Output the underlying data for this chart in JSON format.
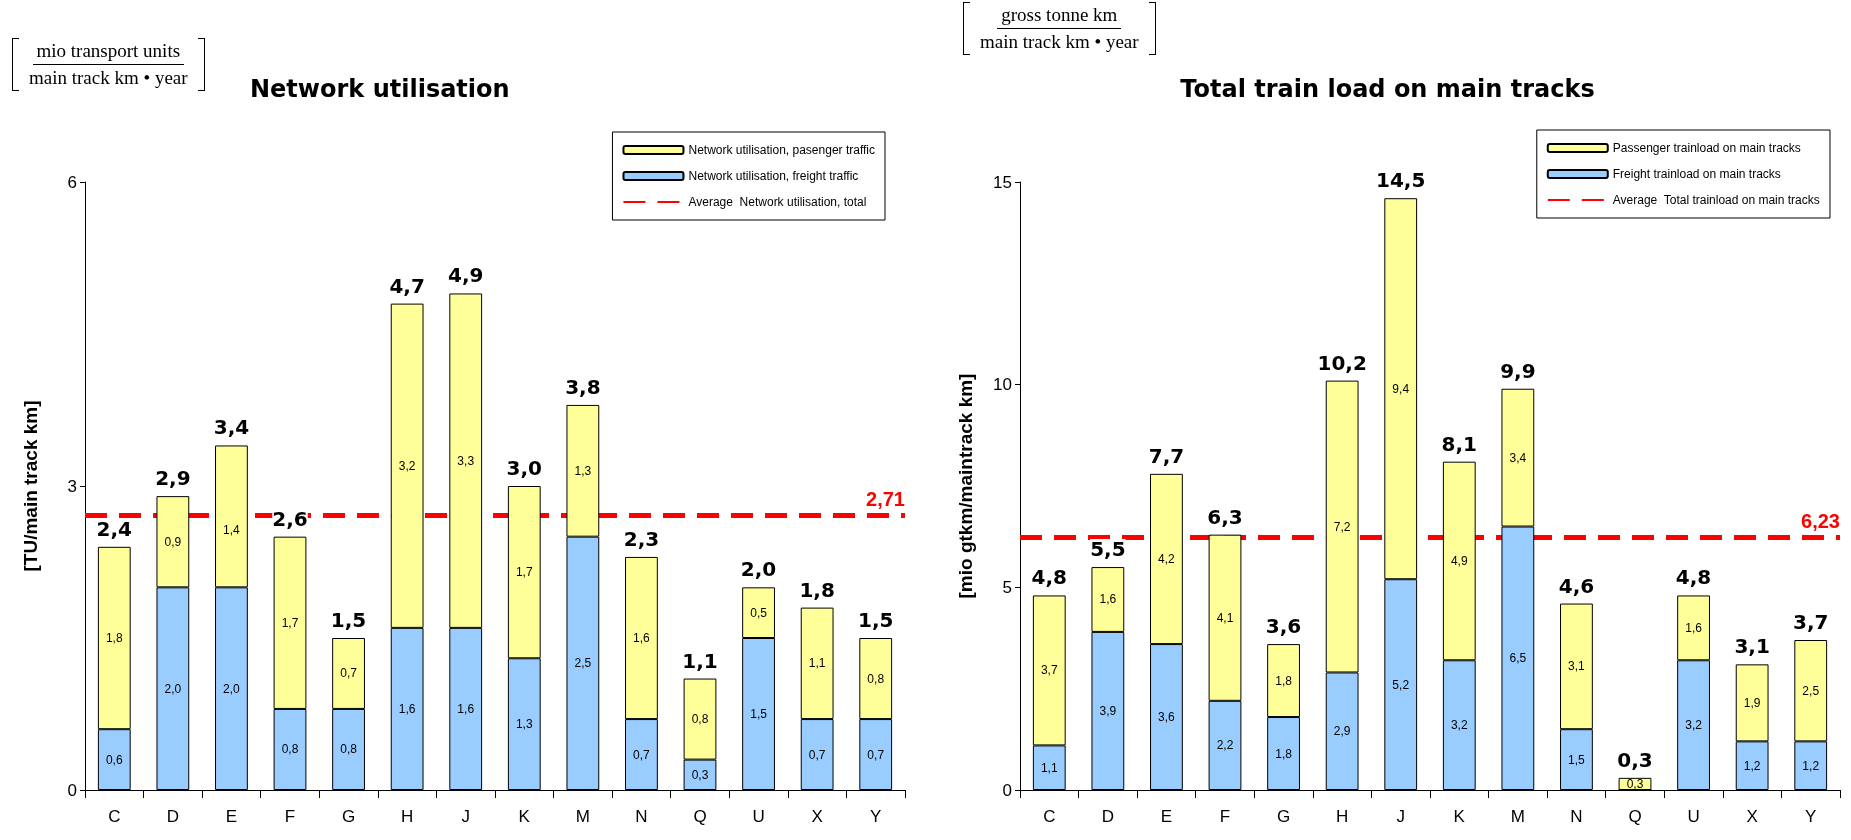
{
  "chart_data": [
    {
      "type": "bar",
      "title": "Network utilisation",
      "ylabel": "[TU/main track km]",
      "annotations": [
        "mio transport units",
        "main track km • year",
        "Average  Network utilisation, total"
      ],
      "categories": [
        "C",
        "D",
        "E",
        "F",
        "G",
        "H",
        "J",
        "K",
        "M",
        "N",
        "Q",
        "U",
        "X",
        "Y"
      ],
      "stacked": true,
      "series": [
        {
          "name": "Network utilisation, freight traffic",
          "color": "#99ccff",
          "values": [
            0.6,
            2.0,
            2.0,
            0.8,
            0.8,
            1.6,
            1.6,
            1.3,
            2.5,
            0.7,
            0.3,
            1.5,
            0.7,
            0.7
          ],
          "value_labels": [
            "0,6",
            "2,0",
            "2,0",
            "0,8",
            "0,8",
            "1,6",
            "1,6",
            "1,3",
            "2,5",
            "0,7",
            "0,3",
            "1,5",
            "0,7",
            "0,7"
          ]
        },
        {
          "name": "Network utilisation, pasenger traffic",
          "color": "#ffff99",
          "values": [
            1.8,
            0.9,
            1.4,
            1.7,
            0.7,
            3.2,
            3.3,
            1.7,
            1.3,
            1.6,
            0.8,
            0.5,
            1.1,
            0.8
          ],
          "value_labels": [
            "1,8",
            "0,9",
            "1,4",
            "1,7",
            "0,7",
            "3,2",
            "3,3",
            "1,7",
            "1,3",
            "1,6",
            "0,8",
            "0,5",
            "1,1",
            "0,8"
          ]
        }
      ],
      "totals": [
        "2,4",
        "2,9",
        "3,4",
        "2,6",
        "1,5",
        "4,7",
        "4,9",
        "3,0",
        "3,8",
        "2,3",
        "1,1",
        "2,0",
        "1,8",
        "1,5"
      ],
      "ylim": [
        0,
        6
      ],
      "yticks": [
        0,
        3,
        6
      ],
      "ref_lines": [
        {
          "axis": "y",
          "value": 2.71,
          "label": "2,71",
          "color": "#ff0000",
          "line_style": "dashed"
        }
      ],
      "grid": false,
      "legend": "top right"
    },
    {
      "type": "bar",
      "title": "Total train load on main tracks",
      "ylabel": "[mio gtkm/maintrack km]",
      "annotations": [
        "gross tonne km",
        "main track km • year",
        "Average  Total trainload on main tracks"
      ],
      "categories": [
        "C",
        "D",
        "E",
        "F",
        "G",
        "H",
        "J",
        "K",
        "M",
        "N",
        "Q",
        "U",
        "X",
        "Y"
      ],
      "stacked": true,
      "series": [
        {
          "name": "Freight trainload on main tracks",
          "color": "#99ccff",
          "values": [
            1.1,
            3.9,
            3.6,
            2.2,
            1.8,
            2.9,
            5.2,
            3.2,
            6.5,
            1.5,
            0.0,
            3.2,
            1.2,
            1.2
          ],
          "value_labels": [
            "1,1",
            "3,9",
            "3,6",
            "2,2",
            "1,8",
            "2,9",
            "5,2",
            "3,2",
            "6,5",
            "1,5",
            null,
            "3,2",
            "1,2",
            "1,2"
          ]
        },
        {
          "name": "Passenger trainload on main tracks",
          "color": "#ffff99",
          "values": [
            3.7,
            1.6,
            4.2,
            4.1,
            1.8,
            7.2,
            9.4,
            4.9,
            3.4,
            3.1,
            0.3,
            1.6,
            1.9,
            2.5
          ],
          "value_labels": [
            "3,7",
            "1,6",
            "4,2",
            "4,1",
            "1,8",
            "7,2",
            "9,4",
            "4,9",
            "3,4",
            "3,1",
            "0,3",
            "1,6",
            "1,9",
            "2,5"
          ]
        }
      ],
      "totals": [
        "4,8",
        "5,5",
        "7,7",
        "6,3",
        "3,6",
        "10,2",
        "14,5",
        "8,1",
        "9,9",
        "4,6",
        "0,3",
        "4,8",
        "3,1",
        "3,7"
      ],
      "ylim": [
        0,
        15
      ],
      "yticks": [
        0,
        5,
        10,
        15
      ],
      "ref_lines": [
        {
          "axis": "y",
          "value": 6.23,
          "label": "6,23",
          "color": "#ff0000",
          "line_style": "dashed"
        }
      ],
      "grid": false,
      "legend": "top right"
    }
  ]
}
